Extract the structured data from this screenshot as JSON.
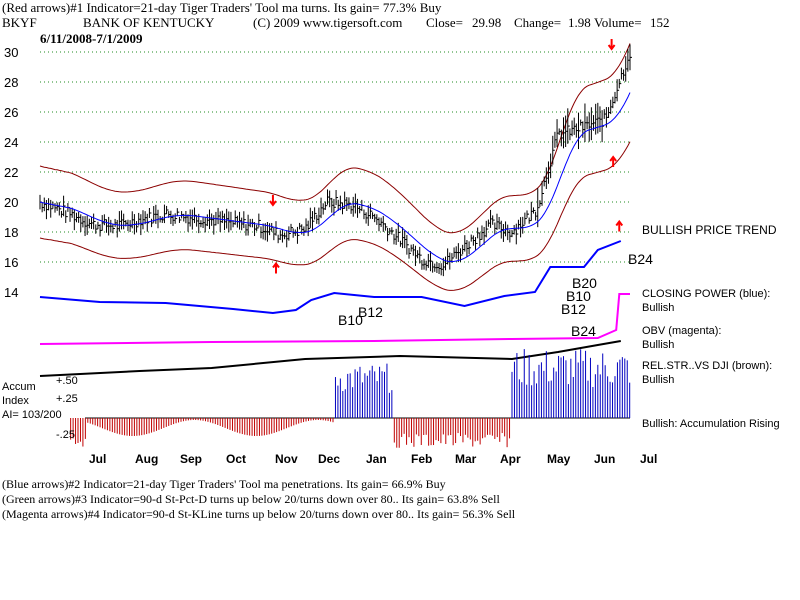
{
  "header": {
    "line1": "(Red arrows)#1 Indicator=21-day Tiger Traders' Tool ma turns.  Its gain= 77.3% Buy",
    "symbol": "BKYF",
    "company": "BANK OF KENTUCKY",
    "copyright": "(C) 2009 www.tigersoft.com",
    "close_label": "Close=",
    "close_value": "29.98",
    "change_label": "Change=",
    "change_value": "1.98",
    "volume_label": "Volume=",
    "volume_value": "152",
    "date_range": "6/11/2008-7/1/2009"
  },
  "labels": {
    "bullish_price_trend": "BULLISH PRICE TREND",
    "closing_power": "CLOSING POWER (blue):",
    "closing_power_status": "Bullish",
    "obv": "OBV (magenta):",
    "obv_status": "Bullish",
    "rel_str": "REL.STR..VS DJI (brown):",
    "rel_str_status": "Bullish",
    "accum_status": "Bullish: Accumulation Rising",
    "accum_index_label1": "Accum",
    "accum_index_label2": "Index",
    "ai_value": "AI= 103/200"
  },
  "footer": {
    "line1": "(Blue arrows)#2 Indicator=21-day Tiger Traders' Tool ma penetrations.  Its gain= 66.9% Buy",
    "line2": "(Green arrows)#3 Indicator=90-d St-Pct-D turns up below 20/turns down over 80..  Its gain= 63.8% Sell",
    "line3": "(Magenta arrows)#4 Indicator=90-d St-KLine turns up below 20/turns down over 80..  Its gain= 56.3% Sell"
  },
  "chart_data": {
    "type": "ohlc",
    "date_range": "6/11/2008-7/1/2009",
    "x_months": [
      "Jul",
      "Aug",
      "Sep",
      "Oct",
      "Nov",
      "Dec",
      "Jan",
      "Feb",
      "Mar",
      "Apr",
      "May",
      "Jun",
      "Jul"
    ],
    "price_axis": {
      "ticks": [
        14,
        16,
        18,
        20,
        22,
        24,
        26,
        28,
        30
      ],
      "ylim": [
        13,
        31
      ]
    },
    "accum_ticks": [
      "+.50",
      "+.25",
      "-.25"
    ],
    "close_path": [
      [
        "2008-06-11",
        20.0
      ],
      [
        "2008-07-01",
        19.2
      ],
      [
        "2008-07-15",
        18.5
      ],
      [
        "2008-08-01",
        18.4
      ],
      [
        "2008-08-15",
        18.8
      ],
      [
        "2008-09-01",
        19.2
      ],
      [
        "2008-09-15",
        19.0
      ],
      [
        "2008-10-01",
        18.8
      ],
      [
        "2008-10-15",
        18.6
      ],
      [
        "2008-11-01",
        18.4
      ],
      [
        "2008-11-15",
        17.8
      ],
      [
        "2008-12-01",
        18.2
      ],
      [
        "2008-12-15",
        20.0
      ],
      [
        "2009-01-01",
        19.8
      ],
      [
        "2009-01-15",
        19.0
      ],
      [
        "2009-02-01",
        17.5
      ],
      [
        "2009-02-15",
        16.2
      ],
      [
        "2009-03-01",
        15.8
      ],
      [
        "2009-03-15",
        17.0
      ],
      [
        "2009-04-01",
        18.5
      ],
      [
        "2009-04-15",
        18.0
      ],
      [
        "2009-05-01",
        19.5
      ],
      [
        "2009-05-15",
        24.5
      ],
      [
        "2009-06-01",
        25.0
      ],
      [
        "2009-06-15",
        25.5
      ],
      [
        "2009-07-01",
        29.98
      ]
    ],
    "price_labels": [
      {
        "text": "B24",
        "date": "2009-06-18",
        "value": 16.3
      }
    ],
    "closing_power_labels": [
      "B10",
      "B12",
      "B20",
      "B10",
      "B12"
    ],
    "obv_labels": [
      "B24"
    ],
    "close": 29.98,
    "change": 1.98,
    "volume": 152,
    "colors": {
      "price_bars": "#000000",
      "ma": "#0000ff",
      "bands": "#8b0000",
      "closing_power": "#0000ff",
      "obv": "#ff00ff",
      "rel_str": "#000000",
      "accum_pos": "#0000c0",
      "accum_neg": "#c00000",
      "red_arrow": "#ff0000",
      "grid": "#228b22"
    }
  }
}
